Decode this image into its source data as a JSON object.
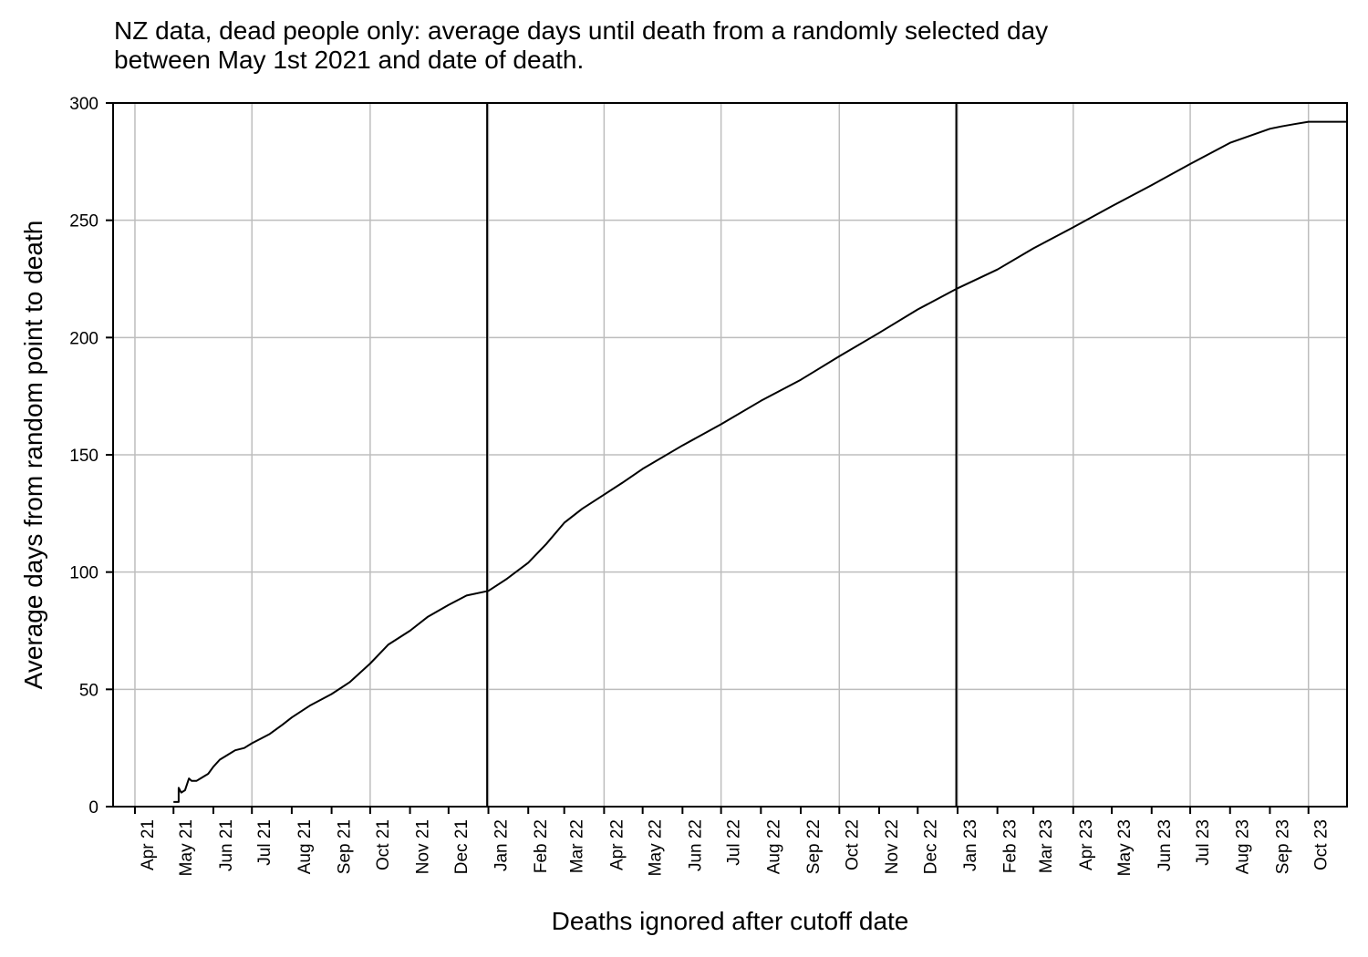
{
  "chart_data": {
    "type": "line",
    "title_lines": [
      "NZ data, dead people only: average days until death from a randomly selected day",
      "between May 1st 2021 and date of death."
    ],
    "xlabel": "Deaths ignored after cutoff date",
    "ylabel": "Average days from random point to death",
    "xlim": [
      "2021-03-15",
      "2023-10-31"
    ],
    "ylim": [
      0,
      300
    ],
    "y_ticks": [
      0,
      50,
      100,
      150,
      200,
      250,
      300
    ],
    "x_tick_dates": [
      "2021-04-01",
      "2021-05-01",
      "2021-06-01",
      "2021-07-01",
      "2021-08-01",
      "2021-09-01",
      "2021-10-01",
      "2021-11-01",
      "2021-12-01",
      "2022-01-01",
      "2022-02-01",
      "2022-03-01",
      "2022-04-01",
      "2022-05-01",
      "2022-06-01",
      "2022-07-01",
      "2022-08-01",
      "2022-09-01",
      "2022-10-01",
      "2022-11-01",
      "2022-12-01",
      "2023-01-01",
      "2023-02-01",
      "2023-03-01",
      "2023-04-01",
      "2023-05-01",
      "2023-06-01",
      "2023-07-01",
      "2023-08-01",
      "2023-09-01",
      "2023-10-01"
    ],
    "x_tick_labels": [
      "Apr 21",
      "May 21",
      "Jun 21",
      "Jul 21",
      "Aug 21",
      "Sep 21",
      "Oct 21",
      "Nov 21",
      "Dec 21",
      "Jan 22",
      "Feb 22",
      "Mar 22",
      "Apr 22",
      "May 22",
      "Jun 22",
      "Jul 22",
      "Aug 22",
      "Sep 22",
      "Oct 22",
      "Nov 22",
      "Dec 22",
      "Jan 23",
      "Feb 23",
      "Mar 23",
      "Apr 23",
      "May 23",
      "Jun 23",
      "Jul 23",
      "Aug 23",
      "Sep 23",
      "Oct 23"
    ],
    "grid": true,
    "vertical_lines": [
      "2021-12-31",
      "2022-12-31"
    ],
    "series": [
      {
        "color": "#000000",
        "x": [
          "2021-05-01",
          "2021-05-05",
          "2021-05-05",
          "2021-05-07",
          "2021-05-10",
          "2021-05-13",
          "2021-05-15",
          "2021-05-19",
          "2021-05-22",
          "2021-05-28",
          "2021-06-01",
          "2021-06-06",
          "2021-06-12",
          "2021-06-18",
          "2021-06-25",
          "2021-07-01",
          "2021-07-08",
          "2021-07-15",
          "2021-07-25",
          "2021-08-01",
          "2021-08-15",
          "2021-09-01",
          "2021-09-15",
          "2021-10-01",
          "2021-10-15",
          "2021-11-01",
          "2021-11-15",
          "2021-12-01",
          "2021-12-15",
          "2022-01-01",
          "2022-01-15",
          "2022-02-01",
          "2022-02-15",
          "2022-03-01",
          "2022-03-15",
          "2022-04-01",
          "2022-04-15",
          "2022-05-01",
          "2022-06-01",
          "2022-07-01",
          "2022-08-01",
          "2022-09-01",
          "2022-10-01",
          "2022-11-01",
          "2022-12-01",
          "2023-01-01",
          "2023-02-01",
          "2023-03-01",
          "2023-04-01",
          "2023-05-01",
          "2023-06-01",
          "2023-07-01",
          "2023-08-01",
          "2023-09-01",
          "2023-09-10",
          "2023-09-20",
          "2023-10-01",
          "2023-10-15",
          "2023-10-31"
        ],
        "y": [
          2,
          2,
          8,
          6,
          7,
          12,
          11,
          11,
          12,
          14,
          17,
          20,
          22,
          24,
          25,
          27,
          29,
          31,
          35,
          38,
          43,
          48,
          53,
          61,
          69,
          75,
          81,
          86,
          90,
          92,
          97,
          104,
          112,
          121,
          127,
          133,
          138,
          144,
          154,
          163,
          173,
          182,
          192,
          202,
          212,
          221,
          229,
          238,
          247,
          256,
          265,
          274,
          283,
          289,
          290,
          291,
          292,
          292,
          292
        ]
      }
    ]
  }
}
